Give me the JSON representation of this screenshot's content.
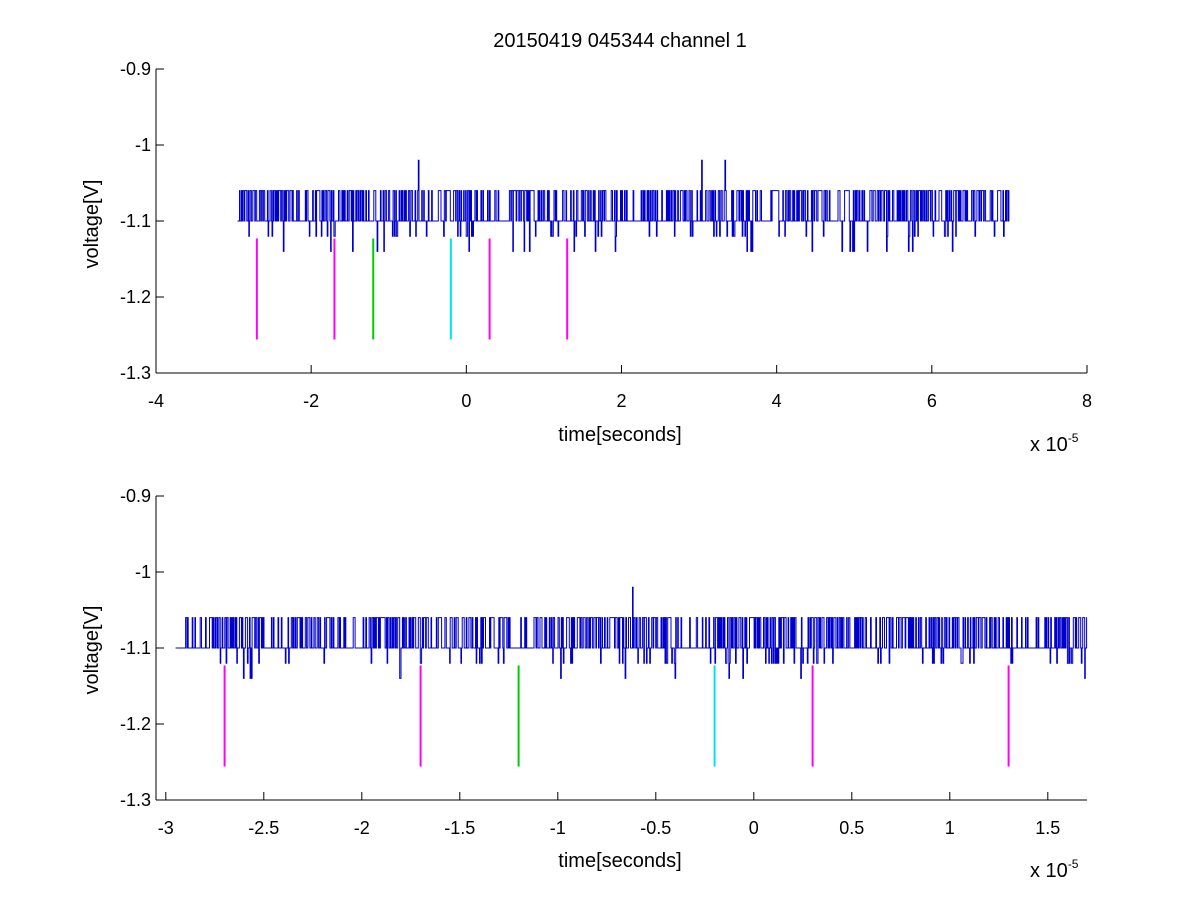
{
  "title": "20150419 045344 channel 1",
  "chart_data": [
    {
      "type": "line",
      "xlabel": "time[seconds]",
      "ylabel": "voltage[V]",
      "x_exponent_label": "x 10",
      "x_exponent": "-5",
      "xlim": [
        -4,
        8
      ],
      "ylim": [
        -1.3,
        -0.9
      ],
      "x_ticks": [
        -4,
        -2,
        0,
        2,
        4,
        6,
        8
      ],
      "x_tick_labels": [
        "-4",
        "-2",
        "0",
        "2",
        "4",
        "6",
        "8"
      ],
      "y_ticks": [
        -1.3,
        -1.2,
        -1.1,
        -1.0,
        -0.9
      ],
      "y_tick_labels": [
        "-1.3",
        "-1.2",
        "-1.1",
        "-1",
        "-0.9"
      ],
      "grid": false,
      "signal": {
        "color": "#0000cc",
        "x_start": -2.95,
        "x_end": 7.0,
        "base": -1.1,
        "high": -1.06,
        "low": -1.14,
        "spike_peaks": [
          {
            "x": -0.62,
            "y": -1.02
          },
          {
            "x": 3.03,
            "y": -1.02
          },
          {
            "x": 3.33,
            "y": -1.02
          }
        ]
      },
      "markers": [
        {
          "x": -2.7,
          "y_top": -1.123,
          "y_bottom": -1.256,
          "color": "#ff00ff"
        },
        {
          "x": -1.7,
          "y_top": -1.123,
          "y_bottom": -1.256,
          "color": "#ff00ff"
        },
        {
          "x": -1.2,
          "y_top": -1.123,
          "y_bottom": -1.256,
          "color": "#00cc00"
        },
        {
          "x": -0.2,
          "y_top": -1.123,
          "y_bottom": -1.256,
          "color": "#00e5e5"
        },
        {
          "x": 0.3,
          "y_top": -1.123,
          "y_bottom": -1.256,
          "color": "#ff00ff"
        },
        {
          "x": 1.3,
          "y_top": -1.123,
          "y_bottom": -1.256,
          "color": "#ff00ff"
        }
      ]
    },
    {
      "type": "line",
      "xlabel": "time[seconds]",
      "ylabel": "voltage[V]",
      "x_exponent_label": "x 10",
      "x_exponent": "-5",
      "xlim": [
        -3.05,
        1.7
      ],
      "ylim": [
        -1.3,
        -0.9
      ],
      "x_ticks": [
        -3,
        -2.5,
        -2,
        -1.5,
        -1,
        -0.5,
        0,
        0.5,
        1,
        1.5
      ],
      "x_tick_labels": [
        "-3",
        "-2.5",
        "-2",
        "-1.5",
        "-1",
        "-0.5",
        "0",
        "0.5",
        "1",
        "1.5"
      ],
      "y_ticks": [
        -1.3,
        -1.2,
        -1.1,
        -1.0,
        -0.9
      ],
      "y_tick_labels": [
        "-1.3",
        "-1.2",
        "-1.1",
        "-1",
        "-0.9"
      ],
      "grid": false,
      "signal": {
        "color": "#0000cc",
        "x_start": -2.95,
        "x_end": 1.7,
        "base": -1.1,
        "high": -1.06,
        "low": -1.14,
        "spike_peaks": [
          {
            "x": -0.62,
            "y": -1.02
          }
        ]
      },
      "markers": [
        {
          "x": -2.7,
          "y_top": -1.123,
          "y_bottom": -1.256,
          "color": "#ff00ff"
        },
        {
          "x": -1.7,
          "y_top": -1.123,
          "y_bottom": -1.256,
          "color": "#ff00ff"
        },
        {
          "x": -1.2,
          "y_top": -1.123,
          "y_bottom": -1.256,
          "color": "#00cc00"
        },
        {
          "x": -0.2,
          "y_top": -1.123,
          "y_bottom": -1.256,
          "color": "#00e5e5"
        },
        {
          "x": 0.3,
          "y_top": -1.123,
          "y_bottom": -1.256,
          "color": "#ff00ff"
        },
        {
          "x": 1.3,
          "y_top": -1.123,
          "y_bottom": -1.256,
          "color": "#ff00ff"
        }
      ]
    }
  ]
}
